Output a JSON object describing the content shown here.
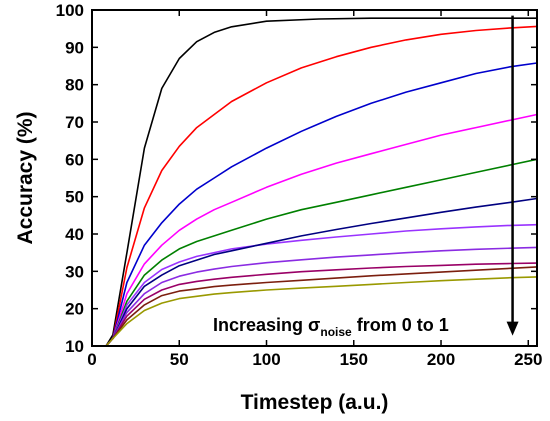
{
  "chart_data": {
    "type": "line",
    "xlabel": "Timestep (a.u.)",
    "ylabel": "Accuracy (%)",
    "xlim": [
      0,
      255
    ],
    "ylim": [
      10,
      100
    ],
    "xticks": [
      0,
      50,
      100,
      150,
      200,
      250
    ],
    "yticks": [
      10,
      20,
      30,
      40,
      50,
      60,
      70,
      80,
      90,
      100
    ],
    "grid": false,
    "legend": "none",
    "annotation": {
      "prefix": "Increasing ",
      "symbol": "σ",
      "subscript": "noise",
      "suffix": " from 0 to 1"
    },
    "series": [
      {
        "color": "#000000",
        "values": [
          [
            0,
            10
          ],
          [
            8,
            10
          ],
          [
            12,
            13
          ],
          [
            20,
            35
          ],
          [
            30,
            63
          ],
          [
            40,
            79
          ],
          [
            50,
            87
          ],
          [
            60,
            91.5
          ],
          [
            70,
            94
          ],
          [
            80,
            95.5
          ],
          [
            100,
            97
          ],
          [
            130,
            97.6
          ],
          [
            160,
            97.8
          ],
          [
            200,
            97.8
          ],
          [
            255,
            97.8
          ]
        ]
      },
      {
        "color": "#ff0000",
        "values": [
          [
            0,
            10
          ],
          [
            8,
            10
          ],
          [
            12,
            12
          ],
          [
            20,
            31
          ],
          [
            30,
            47
          ],
          [
            40,
            57
          ],
          [
            50,
            63.5
          ],
          [
            60,
            68.5
          ],
          [
            70,
            72
          ],
          [
            80,
            75.5
          ],
          [
            100,
            80.5
          ],
          [
            120,
            84.5
          ],
          [
            140,
            87.5
          ],
          [
            160,
            90
          ],
          [
            180,
            92
          ],
          [
            200,
            93.5
          ],
          [
            220,
            94.5
          ],
          [
            240,
            95.2
          ],
          [
            255,
            95.6
          ]
        ]
      },
      {
        "color": "#0000cc",
        "values": [
          [
            0,
            10
          ],
          [
            8,
            10
          ],
          [
            12,
            12
          ],
          [
            20,
            27
          ],
          [
            30,
            37
          ],
          [
            40,
            43
          ],
          [
            50,
            48
          ],
          [
            60,
            52
          ],
          [
            70,
            55
          ],
          [
            80,
            58
          ],
          [
            100,
            63
          ],
          [
            120,
            67.5
          ],
          [
            140,
            71.5
          ],
          [
            160,
            75
          ],
          [
            180,
            78
          ],
          [
            200,
            80.5
          ],
          [
            220,
            83
          ],
          [
            240,
            84.8
          ],
          [
            255,
            85.8
          ]
        ]
      },
      {
        "color": "#ff00ff",
        "values": [
          [
            0,
            10
          ],
          [
            8,
            10
          ],
          [
            12,
            12
          ],
          [
            20,
            24
          ],
          [
            30,
            32
          ],
          [
            40,
            37
          ],
          [
            50,
            41
          ],
          [
            60,
            44
          ],
          [
            70,
            46.5
          ],
          [
            80,
            48.5
          ],
          [
            100,
            52.5
          ],
          [
            120,
            56
          ],
          [
            140,
            59
          ],
          [
            160,
            61.5
          ],
          [
            180,
            64
          ],
          [
            200,
            66.5
          ],
          [
            220,
            68.5
          ],
          [
            240,
            70.5
          ],
          [
            255,
            72
          ]
        ]
      },
      {
        "color": "#008000",
        "values": [
          [
            0,
            10
          ],
          [
            8,
            10
          ],
          [
            12,
            12
          ],
          [
            20,
            22
          ],
          [
            30,
            29
          ],
          [
            40,
            33
          ],
          [
            50,
            36
          ],
          [
            60,
            38
          ],
          [
            70,
            39.5
          ],
          [
            80,
            41
          ],
          [
            100,
            44
          ],
          [
            120,
            46.5
          ],
          [
            140,
            48.5
          ],
          [
            160,
            50.5
          ],
          [
            180,
            52.5
          ],
          [
            200,
            54.5
          ],
          [
            220,
            56.5
          ],
          [
            240,
            58.5
          ],
          [
            255,
            60
          ]
        ]
      },
      {
        "color": "#9933ff",
        "values": [
          [
            0,
            10
          ],
          [
            8,
            10
          ],
          [
            12,
            12
          ],
          [
            20,
            21
          ],
          [
            30,
            27
          ],
          [
            40,
            30.5
          ],
          [
            50,
            32.5
          ],
          [
            60,
            34
          ],
          [
            70,
            35
          ],
          [
            80,
            36
          ],
          [
            100,
            37.3
          ],
          [
            120,
            38.3
          ],
          [
            140,
            39.2
          ],
          [
            160,
            40
          ],
          [
            180,
            40.8
          ],
          [
            200,
            41.4
          ],
          [
            220,
            41.9
          ],
          [
            240,
            42.3
          ],
          [
            255,
            42.5
          ]
        ]
      },
      {
        "color": "#000080",
        "values": [
          [
            0,
            10
          ],
          [
            8,
            10
          ],
          [
            12,
            12
          ],
          [
            20,
            20
          ],
          [
            30,
            26
          ],
          [
            40,
            29
          ],
          [
            50,
            31.5
          ],
          [
            60,
            33
          ],
          [
            70,
            34.5
          ],
          [
            80,
            35.5
          ],
          [
            100,
            37.5
          ],
          [
            120,
            39.5
          ],
          [
            140,
            41.2
          ],
          [
            160,
            42.8
          ],
          [
            180,
            44.3
          ],
          [
            200,
            45.8
          ],
          [
            220,
            47.2
          ],
          [
            240,
            48.5
          ],
          [
            255,
            49.5
          ]
        ]
      },
      {
        "color": "#8a2be2",
        "values": [
          [
            0,
            10
          ],
          [
            8,
            10
          ],
          [
            12,
            12
          ],
          [
            20,
            19
          ],
          [
            30,
            24
          ],
          [
            40,
            27
          ],
          [
            50,
            28.7
          ],
          [
            60,
            29.8
          ],
          [
            70,
            30.6
          ],
          [
            80,
            31.3
          ],
          [
            100,
            32.3
          ],
          [
            120,
            33.1
          ],
          [
            140,
            33.8
          ],
          [
            160,
            34.4
          ],
          [
            180,
            35
          ],
          [
            200,
            35.5
          ],
          [
            220,
            35.9
          ],
          [
            240,
            36.2
          ],
          [
            255,
            36.4
          ]
        ]
      },
      {
        "color": "#990066",
        "values": [
          [
            0,
            10
          ],
          [
            8,
            10
          ],
          [
            12,
            12
          ],
          [
            20,
            18
          ],
          [
            30,
            22.5
          ],
          [
            40,
            25
          ],
          [
            50,
            26.5
          ],
          [
            60,
            27.3
          ],
          [
            70,
            27.9
          ],
          [
            80,
            28.4
          ],
          [
            100,
            29.2
          ],
          [
            120,
            29.9
          ],
          [
            140,
            30.4
          ],
          [
            160,
            30.9
          ],
          [
            180,
            31.3
          ],
          [
            200,
            31.6
          ],
          [
            220,
            31.9
          ],
          [
            240,
            32.1
          ],
          [
            255,
            32.2
          ]
        ]
      },
      {
        "color": "#7b1f0e",
        "values": [
          [
            0,
            10
          ],
          [
            8,
            10
          ],
          [
            12,
            12
          ],
          [
            20,
            17
          ],
          [
            30,
            21
          ],
          [
            40,
            23.5
          ],
          [
            50,
            24.7
          ],
          [
            60,
            25.3
          ],
          [
            70,
            25.9
          ],
          [
            80,
            26.3
          ],
          [
            100,
            27
          ],
          [
            120,
            27.6
          ],
          [
            140,
            28.2
          ],
          [
            160,
            28.8
          ],
          [
            180,
            29.3
          ],
          [
            200,
            29.8
          ],
          [
            220,
            30.3
          ],
          [
            240,
            30.8
          ],
          [
            255,
            31.2
          ]
        ]
      },
      {
        "color": "#999900",
        "values": [
          [
            0,
            10
          ],
          [
            8,
            10
          ],
          [
            12,
            12
          ],
          [
            20,
            16
          ],
          [
            30,
            19.5
          ],
          [
            40,
            21.5
          ],
          [
            50,
            22.7
          ],
          [
            60,
            23.3
          ],
          [
            70,
            23.9
          ],
          [
            80,
            24.3
          ],
          [
            100,
            25
          ],
          [
            120,
            25.5
          ],
          [
            140,
            26
          ],
          [
            160,
            26.5
          ],
          [
            180,
            27
          ],
          [
            200,
            27.5
          ],
          [
            220,
            27.9
          ],
          [
            240,
            28.3
          ],
          [
            255,
            28.5
          ]
        ]
      }
    ]
  }
}
